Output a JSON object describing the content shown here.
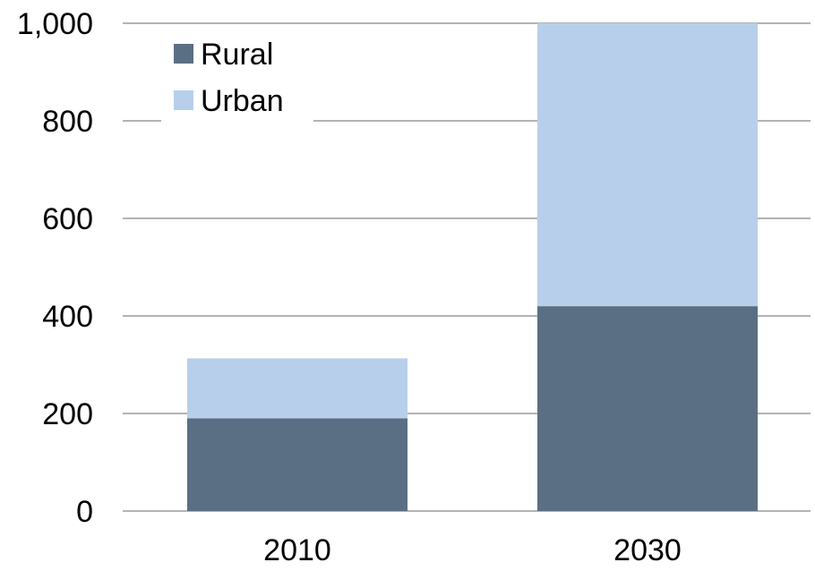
{
  "chart_data": {
    "type": "bar",
    "stacked": true,
    "categories": [
      "2010",
      "2030"
    ],
    "series": [
      {
        "name": "Rural",
        "values": [
          190,
          420
        ],
        "color": "#5b6f84"
      },
      {
        "name": "Urban",
        "values": [
          123,
          580
        ],
        "color": "#b7cfea"
      }
    ],
    "yticks": [
      "0",
      "200",
      "400",
      "600",
      "800",
      "1,000"
    ],
    "ytick_values": [
      0,
      200,
      400,
      600,
      800,
      1000
    ],
    "ylim": [
      0,
      1000
    ],
    "grid": true,
    "legend_position": "top-left"
  }
}
